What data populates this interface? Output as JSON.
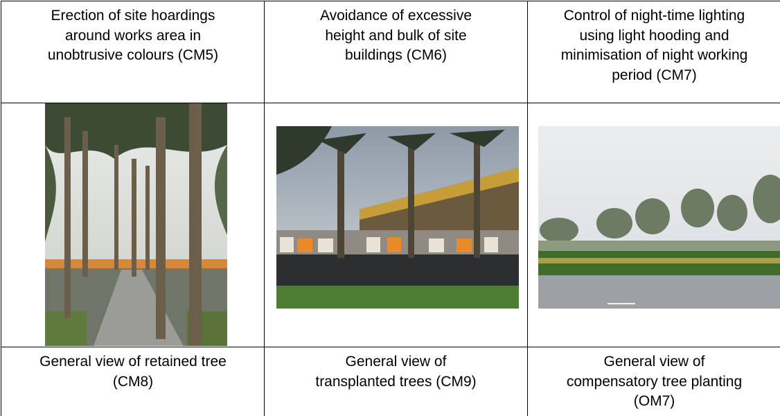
{
  "table": {
    "top_row": [
      [
        "Erection of site hoardings",
        "around works area in",
        "unobtrusive colours (CM5)"
      ],
      [
        "Avoidance of excessive",
        "height and bulk of site",
        "buildings (CM6)"
      ],
      [
        "Control of night-time lighting",
        "using light hooding and",
        "minimisation of night working",
        "period (CM7)"
      ]
    ],
    "bottom_row": [
      [
        "General view of retained tree",
        "(CM8)"
      ],
      [
        "General view of",
        "transplanted trees (CM9)"
      ],
      [
        "General view of",
        "compensatory tree planting",
        "(OM7)"
      ]
    ]
  }
}
